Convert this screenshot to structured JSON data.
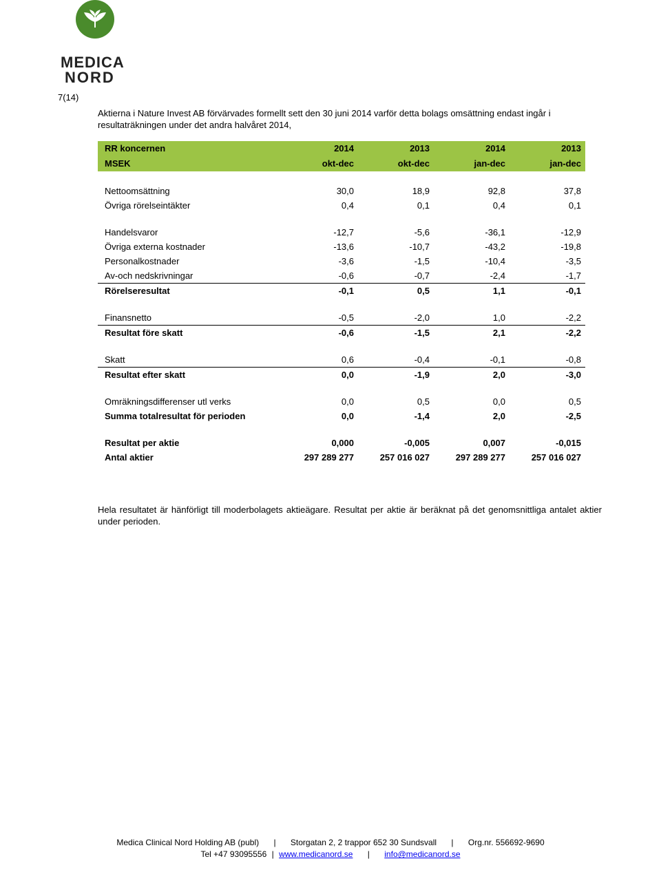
{
  "logo": {
    "line1": "MEDICA",
    "line2": "NORD"
  },
  "page_number": "7(14)",
  "intro": "Aktierna i Nature Invest AB förvärvades formellt sett den 30 juni 2014 varför detta bolags omsättning endast ingår i resultaträkningen under det andra halvåret 2014,",
  "header": {
    "title": "RR koncernen",
    "subtitle": "MSEK",
    "cols_top": [
      "2014",
      "2013",
      "2014",
      "2013"
    ],
    "cols_bot": [
      "okt-dec",
      "okt-dec",
      "jan-dec",
      "jan-dec"
    ]
  },
  "rows": [
    {
      "type": "spacer"
    },
    {
      "type": "data",
      "label": "Nettoomsättning",
      "vals": [
        "30,0",
        "18,9",
        "92,8",
        "37,8"
      ]
    },
    {
      "type": "data",
      "label": "Övriga rörelseintäkter",
      "vals": [
        "0,4",
        "0,1",
        "0,4",
        "0,1"
      ]
    },
    {
      "type": "spacer"
    },
    {
      "type": "data",
      "label": "Handelsvaror",
      "vals": [
        "-12,7",
        "-5,6",
        "-36,1",
        "-12,9"
      ]
    },
    {
      "type": "data",
      "label": "Övriga externa kostnader",
      "vals": [
        "-13,6",
        "-10,7",
        "-43,2",
        "-19,8"
      ]
    },
    {
      "type": "data",
      "label": "Personalkostnader",
      "vals": [
        "-3,6",
        "-1,5",
        "-10,4",
        "-3,5"
      ]
    },
    {
      "type": "data",
      "underline": true,
      "label": "Av-och nedskrivningar",
      "vals": [
        "-0,6",
        "-0,7",
        "-2,4",
        "-1,7"
      ]
    },
    {
      "type": "data",
      "bold": true,
      "label": "Rörelseresultat",
      "vals": [
        "-0,1",
        "0,5",
        "1,1",
        "-0,1"
      ]
    },
    {
      "type": "spacer"
    },
    {
      "type": "data",
      "underline": true,
      "label": "Finansnetto",
      "vals": [
        "-0,5",
        "-2,0",
        "1,0",
        "-2,2"
      ]
    },
    {
      "type": "data",
      "bold": true,
      "label": "Resultat före skatt",
      "vals": [
        "-0,6",
        "-1,5",
        "2,1",
        "-2,2"
      ]
    },
    {
      "type": "spacer"
    },
    {
      "type": "data",
      "underline": true,
      "label": "Skatt",
      "vals": [
        "0,6",
        "-0,4",
        "-0,1",
        "-0,8"
      ]
    },
    {
      "type": "data",
      "bold": true,
      "label": "Resultat efter skatt",
      "vals": [
        "0,0",
        "-1,9",
        "2,0",
        "-3,0"
      ]
    },
    {
      "type": "spacer"
    },
    {
      "type": "data",
      "label": "Omräkningsdifferenser utl verks",
      "vals": [
        "0,0",
        "0,5",
        "0,0",
        "0,5"
      ]
    },
    {
      "type": "data",
      "bold": true,
      "label": "Summa totalresultat för perioden",
      "vals": [
        "0,0",
        "-1,4",
        "2,0",
        "-2,5"
      ]
    },
    {
      "type": "spacer"
    },
    {
      "type": "data",
      "bold": true,
      "label": "Resultat per aktie",
      "vals": [
        "0,000",
        "-0,005",
        "0,007",
        "-0,015"
      ]
    },
    {
      "type": "data",
      "bold": true,
      "label": "Antal aktier",
      "vals": [
        "297 289 277",
        "257 016 027",
        "297 289 277",
        "257 016 027"
      ]
    }
  ],
  "footnote": "Hela resultatet är hänförligt till moderbolagets aktieägare. Resultat per aktie är beräknat på det genomsnittliga antalet aktier under perioden.",
  "footer": {
    "line1": {
      "company": "Medica Clinical Nord Holding AB (publ)",
      "address": "Storgatan 2, 2 trappor 652 30 Sundsvall",
      "org": "Org.nr. 556692-9690"
    },
    "line2": {
      "tel": "Tel +47 93095556",
      "web": "www.medicanord.se",
      "email": "info@medicanord.se"
    }
  }
}
